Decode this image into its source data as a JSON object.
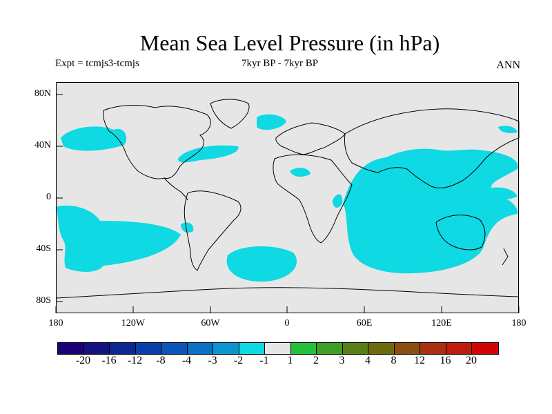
{
  "title": "Mean Sea Level Pressure (in hPa)",
  "experiment": "Expt = tcmjs3-tcmjs",
  "period": "7kyr BP - 7kyr BP",
  "season": "ANN",
  "y_ticks": [
    "80N",
    "40N",
    "0",
    "40S",
    "80S"
  ],
  "x_ticks": [
    "180",
    "120W",
    "60W",
    "0",
    "60E",
    "120E",
    "180"
  ],
  "legend_labels": [
    "-20",
    "-16",
    "-12",
    "-8",
    "-4",
    "-3",
    "-2",
    "-1",
    "1",
    "2",
    "3",
    "4",
    "8",
    "12",
    "16",
    "20"
  ],
  "legend_colors": [
    "#1c0078",
    "#14127f",
    "#0c2891",
    "#0a3ea8",
    "#0b54b8",
    "#0c70c4",
    "#0b95d0",
    "#0fd9e2",
    "#e6e6e6",
    "#23c03c",
    "#3f9e27",
    "#5a7e15",
    "#6e6a0f",
    "#8b4e10",
    "#a8310e",
    "#bf1b0e",
    "#d40303"
  ],
  "colors": {
    "land_outline": "#000000",
    "background": "#e6e6e6",
    "anomaly_fill": "#0fd9e2"
  }
}
